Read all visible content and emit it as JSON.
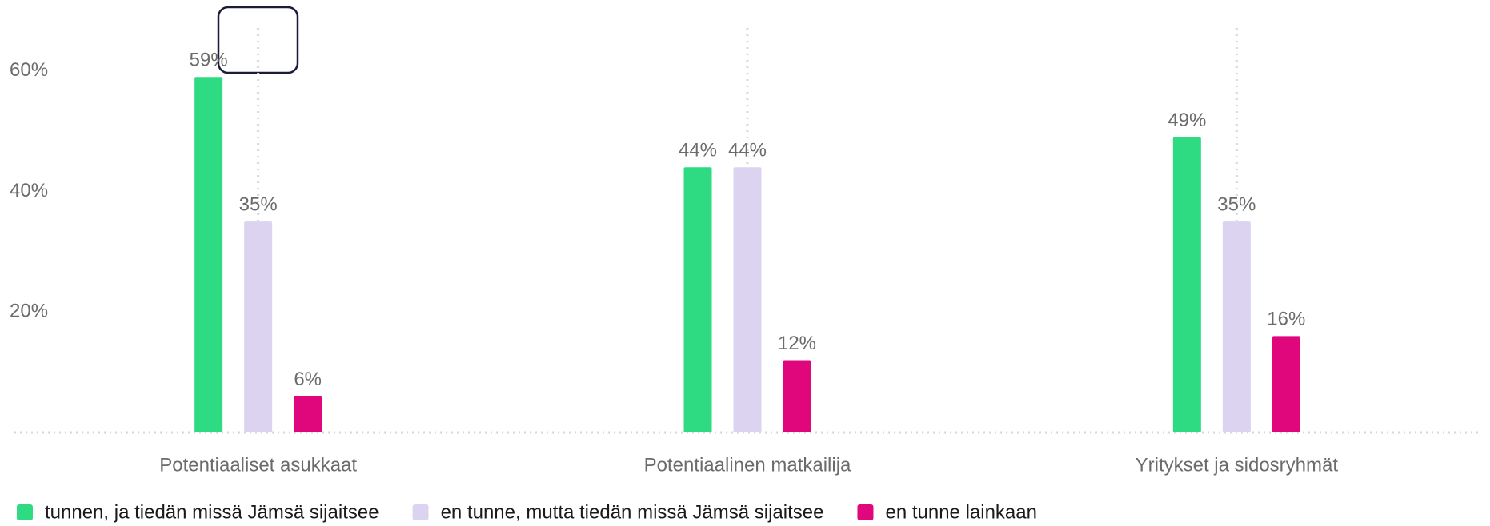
{
  "chart_data": {
    "type": "bar",
    "categories": [
      "Potentiaaliset asukkaat",
      "Potentiaalinen matkailija",
      "Yritykset ja sidosryhmät"
    ],
    "series": [
      {
        "name": "tunnen, ja tiedän missä Jämsä sijaitsee",
        "color": "#2edb82",
        "values": [
          59,
          44,
          49
        ],
        "value_labels": [
          "59%",
          "44%",
          "49%"
        ]
      },
      {
        "name": "en tunne, mutta tiedän missä Jämsä sijaitsee",
        "color": "#dcd3f0",
        "values": [
          35,
          44,
          35
        ],
        "value_labels": [
          "35%",
          "44%",
          "35%"
        ]
      },
      {
        "name": "en tunne lainkaan",
        "color": "#e0077d",
        "values": [
          6,
          12,
          16
        ],
        "value_labels": [
          "6%",
          "12%",
          "16%"
        ]
      }
    ],
    "ylim": [
      0,
      65
    ],
    "yticks": [
      {
        "value": 20,
        "label": "20%"
      },
      {
        "value": 40,
        "label": "40%"
      },
      {
        "value": 60,
        "label": "60%"
      }
    ],
    "legend": "bottom-left"
  }
}
